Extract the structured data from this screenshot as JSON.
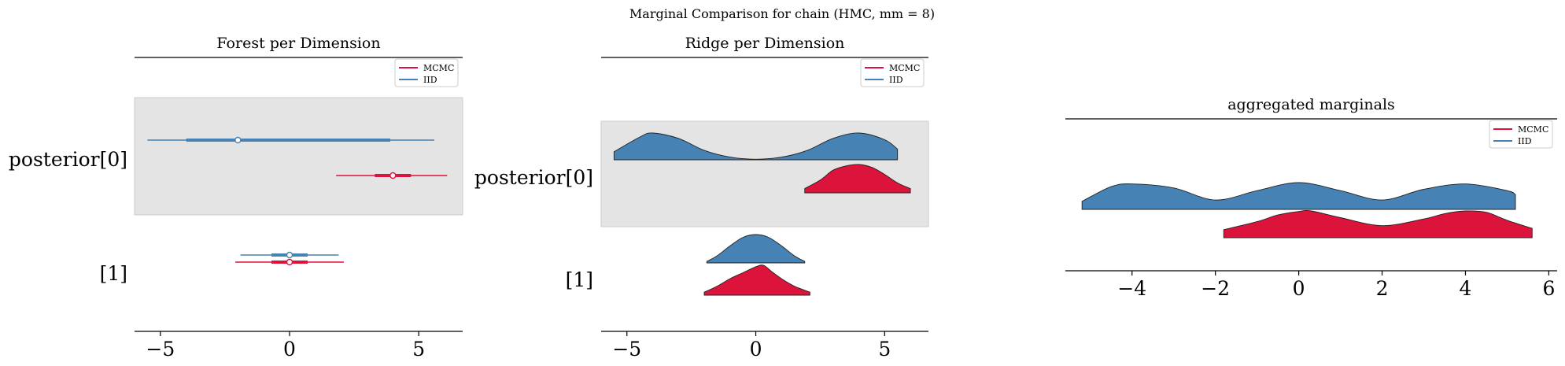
{
  "figure": {
    "suptitle": "Marginal Comparison for chain (HMC, mm = 8)"
  },
  "legend": {
    "entries": [
      {
        "label": "MCMC",
        "color": "#dc143c"
      },
      {
        "label": "IID",
        "color": "#4682b4"
      }
    ]
  },
  "colors": {
    "mcmc": "#dc143c",
    "iid": "#4682b4",
    "band": "#e4e4e4",
    "band_edge": "#cccccc"
  },
  "chart_data": [
    {
      "type": "forest",
      "title": "Forest per Dimension",
      "xlim": [
        -6.0,
        6.7
      ],
      "xticks": [
        -5,
        0,
        5
      ],
      "xtick_labels": [
        "−5",
        "0",
        "5"
      ],
      "row_labels": [
        "posterior[0]",
        "[1]"
      ],
      "highlighted_row": 0,
      "legend_position": "top-right",
      "series": [
        {
          "name": "MCMC",
          "color": "#dc143c",
          "rows": [
            {
              "row": 0,
              "hdi_94": [
                1.8,
                6.1
              ],
              "iqr": [
                3.3,
                4.7
              ],
              "median": 4.0
            },
            {
              "row": 1,
              "hdi_94": [
                -2.1,
                2.1
              ],
              "iqr": [
                -0.7,
                0.7
              ],
              "median": 0.0
            }
          ]
        },
        {
          "name": "IID",
          "color": "#4682b4",
          "rows": [
            {
              "row": 0,
              "hdi_94": [
                -5.5,
                5.6
              ],
              "iqr": [
                -4.0,
                3.9
              ],
              "median": -2.0
            },
            {
              "row": 1,
              "hdi_94": [
                -1.9,
                1.9
              ],
              "iqr": [
                -0.7,
                0.7
              ],
              "median": 0.0
            }
          ]
        }
      ]
    },
    {
      "type": "ridge",
      "title": "Ridge per Dimension",
      "xlim": [
        -6.0,
        6.7
      ],
      "xticks": [
        -5,
        0,
        5
      ],
      "xtick_labels": [
        "−5",
        "0",
        "5"
      ],
      "row_labels": [
        "posterior[0]",
        "[1]"
      ],
      "highlighted_row": 0,
      "legend_position": "top-right",
      "series": [
        {
          "name": "IID",
          "color": "#4682b4",
          "rows": [
            {
              "row": 0,
              "x": [
                -5.5,
                -4.5,
                -4.0,
                -3.0,
                -2.0,
                -1.0,
                0.0,
                1.0,
                2.0,
                3.0,
                4.0,
                5.0,
                5.5
              ],
              "density": [
                0.3,
                0.85,
                1.0,
                0.8,
                0.35,
                0.1,
                0.02,
                0.1,
                0.35,
                0.8,
                1.0,
                0.75,
                0.4
              ]
            },
            {
              "row": 1,
              "x": [
                -1.9,
                -1.5,
                -1.0,
                -0.5,
                0.0,
                0.5,
                1.0,
                1.5,
                1.9
              ],
              "density": [
                0.05,
                0.25,
                0.6,
                0.9,
                1.0,
                0.9,
                0.6,
                0.25,
                0.05
              ]
            }
          ]
        },
        {
          "name": "MCMC",
          "color": "#dc143c",
          "rows": [
            {
              "row": 0,
              "x": [
                1.9,
                2.5,
                3.0,
                3.5,
                4.0,
                4.5,
                5.0,
                5.5,
                6.0
              ],
              "density": [
                0.15,
                0.45,
                0.8,
                0.95,
                1.0,
                0.9,
                0.65,
                0.35,
                0.15
              ]
            },
            {
              "row": 1,
              "x": [
                -2.0,
                -1.5,
                -1.0,
                -0.5,
                0.0,
                0.3,
                0.6,
                1.0,
                1.5,
                2.1
              ],
              "density": [
                0.1,
                0.3,
                0.55,
                0.75,
                0.95,
                1.0,
                0.8,
                0.55,
                0.3,
                0.1
              ]
            }
          ]
        }
      ]
    },
    {
      "type": "ridge",
      "title": "aggregated marginals",
      "xlim": [
        -5.6,
        6.2
      ],
      "xticks": [
        -4,
        -2,
        0,
        2,
        4,
        6
      ],
      "xtick_labels": [
        "−4",
        "−2",
        "0",
        "2",
        "4",
        "6"
      ],
      "legend_position": "top-right",
      "series": [
        {
          "name": "IID",
          "color": "#4682b4",
          "x": [
            -5.2,
            -4.5,
            -4.0,
            -3.0,
            -2.0,
            -1.0,
            0.0,
            1.0,
            2.0,
            3.0,
            4.0,
            5.0,
            5.2
          ],
          "density": [
            0.3,
            0.85,
            0.95,
            0.8,
            0.35,
            0.7,
            1.0,
            0.7,
            0.35,
            0.75,
            0.95,
            0.7,
            0.55
          ]
        },
        {
          "name": "MCMC",
          "color": "#dc143c",
          "x": [
            -1.8,
            -1.0,
            -0.5,
            0.0,
            0.3,
            1.0,
            2.0,
            3.0,
            3.5,
            4.0,
            4.5,
            5.0,
            5.6
          ],
          "density": [
            0.3,
            0.6,
            0.85,
            0.98,
            1.0,
            0.75,
            0.45,
            0.7,
            0.9,
            1.0,
            0.95,
            0.65,
            0.35
          ]
        }
      ]
    }
  ]
}
